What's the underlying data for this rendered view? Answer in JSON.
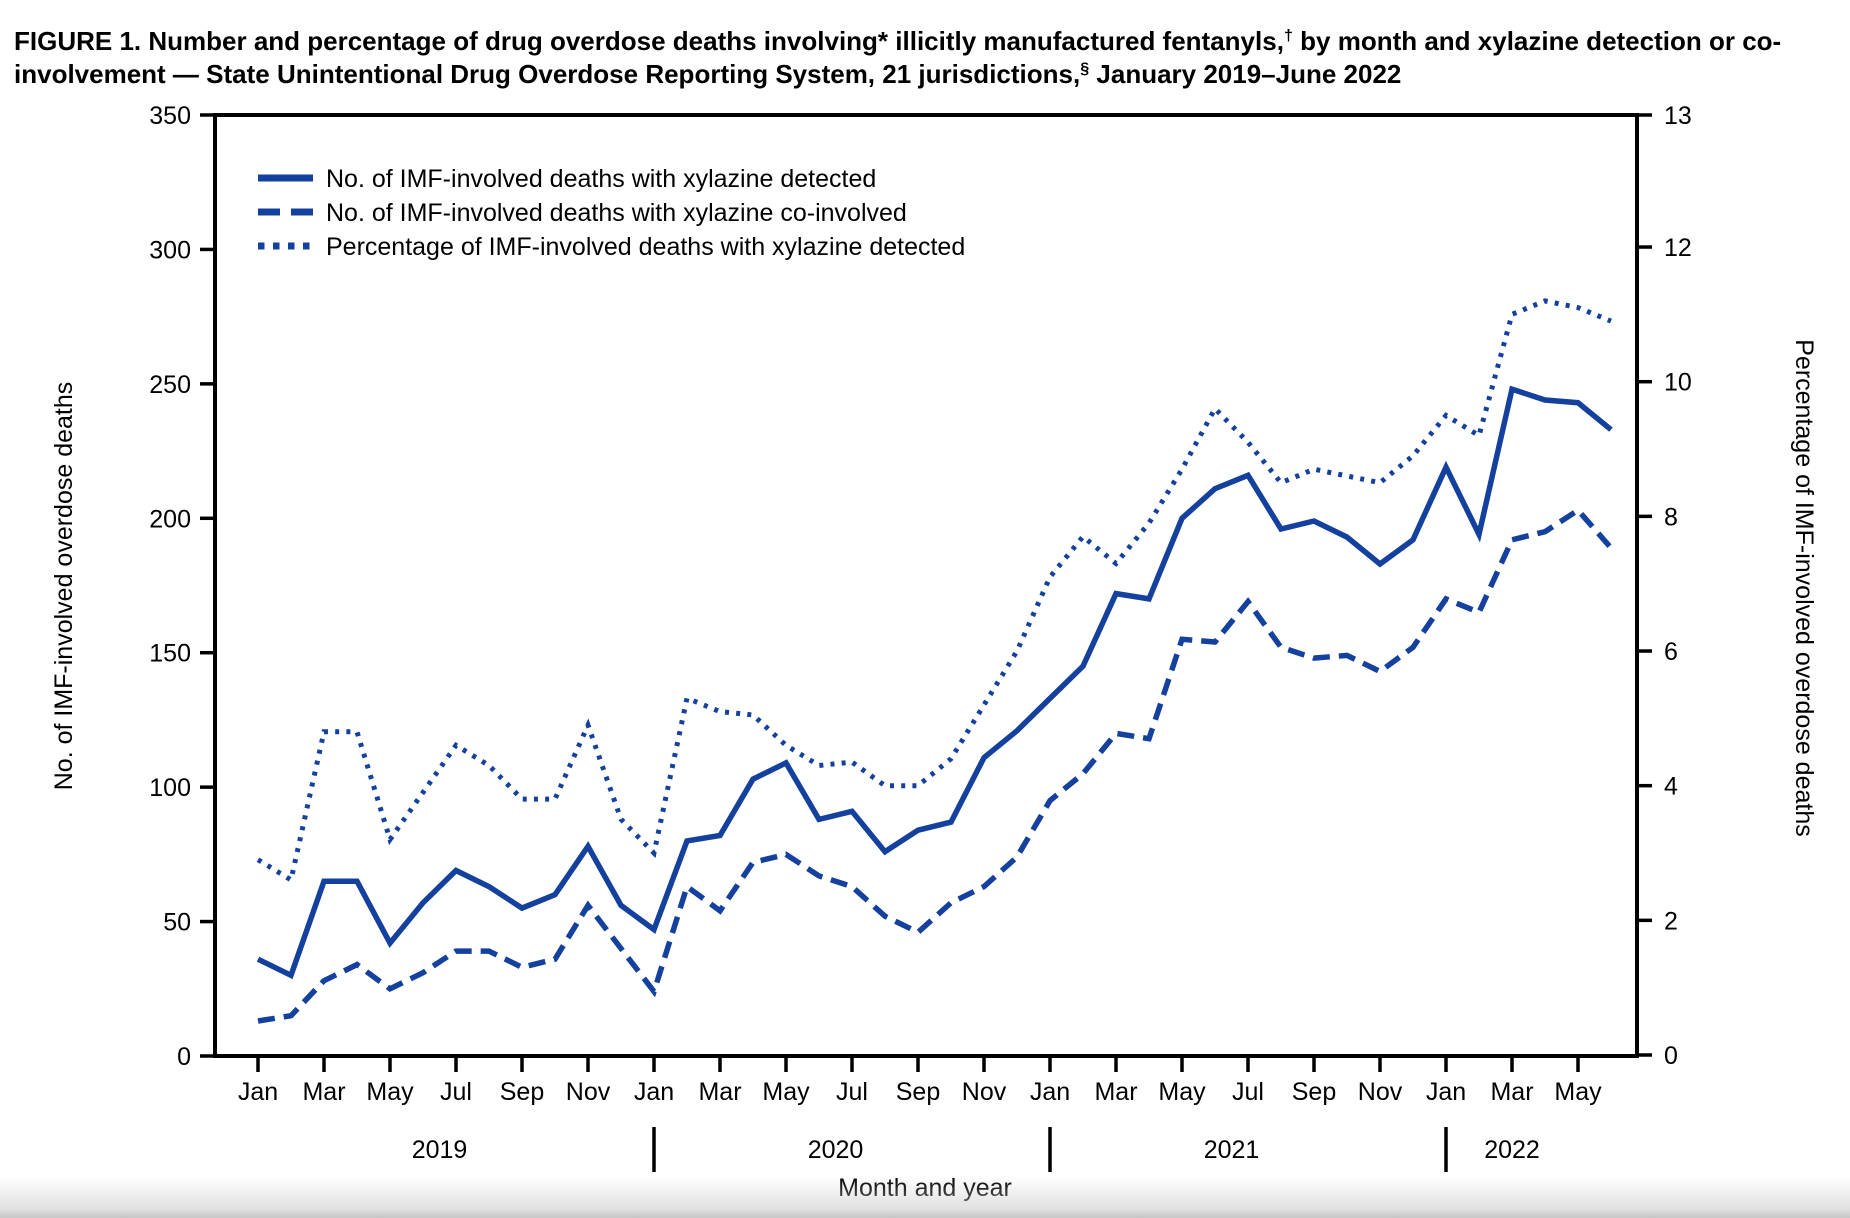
{
  "figure_title": {
    "plain": "FIGURE 1. Number and percentage of drug overdose deaths involving* illicitly manufactured fentanyls,† by month and xylazine detection or co-involvement — State Unintentional Drug Overdose Reporting System, 21 jurisdictions,§ January 2019–June 2022",
    "segments": [
      {
        "text": "FIGURE 1. Number and percentage of drug overdose deaths involving* illicitly manufactured fentanyls,"
      },
      {
        "text": "†",
        "sup": true
      },
      {
        "text": " by month and xylazine detection or co-involvement — State Unintentional Drug Overdose Reporting System, 21 jurisdictions,"
      },
      {
        "text": "§",
        "sup": true
      },
      {
        "text": " January 2019–June 2022"
      }
    ]
  },
  "chart_data": {
    "type": "line",
    "title": "Number and percentage of drug overdose deaths involving illicitly manufactured fentanyls, by month and xylazine detection or co-involvement, January 2019–June 2022",
    "xlabel": "Month and year",
    "ylabel_left": "No. of IMF-involved overdose deaths",
    "ylabel_right": "Percentage of IMF-involved overdose deaths",
    "y_axis_left": {
      "min": 0,
      "max": 350,
      "ticks": [
        0,
        50,
        100,
        150,
        200,
        250,
        300,
        350
      ]
    },
    "y_axis_right": {
      "min": 0,
      "max": 13,
      "ticks": [
        0,
        2,
        4,
        6,
        8,
        10,
        12
      ],
      "top_tick": 13
    },
    "x_axis": {
      "month_tick_labels": [
        "Jan",
        "Mar",
        "May",
        "Jul",
        "Sep",
        "Nov",
        "Jan",
        "Mar",
        "May",
        "Jul",
        "Sep",
        "Nov",
        "Jan",
        "Mar",
        "May",
        "Jul",
        "Sep",
        "Nov",
        "Jan",
        "Mar",
        "May"
      ],
      "year_labels": [
        {
          "text": "2019",
          "anchor_month_index": 5.5
        },
        {
          "text": "2020",
          "anchor_month_index": 17.5
        },
        {
          "text": "2021",
          "anchor_month_index": 29.5
        },
        {
          "text": "2022",
          "anchor_month_index": 38
        }
      ],
      "year_separator_month_indexes": [
        12,
        24,
        36
      ]
    },
    "months": [
      "Jan 2019",
      "Feb 2019",
      "Mar 2019",
      "Apr 2019",
      "May 2019",
      "Jun 2019",
      "Jul 2019",
      "Aug 2019",
      "Sep 2019",
      "Oct 2019",
      "Nov 2019",
      "Dec 2019",
      "Jan 2020",
      "Feb 2020",
      "Mar 2020",
      "Apr 2020",
      "May 2020",
      "Jun 2020",
      "Jul 2020",
      "Aug 2020",
      "Sep 2020",
      "Oct 2020",
      "Nov 2020",
      "Dec 2020",
      "Jan 2021",
      "Feb 2021",
      "Mar 2021",
      "Apr 2021",
      "May 2021",
      "Jun 2021",
      "Jul 2021",
      "Aug 2021",
      "Sep 2021",
      "Oct 2021",
      "Nov 2021",
      "Dec 2021",
      "Jan 2022",
      "Feb 2022",
      "Mar 2022",
      "Apr 2022",
      "May 2022",
      "Jun 2022"
    ],
    "series": [
      {
        "name": "No. of IMF-involved deaths with xylazine detected",
        "style": "solid",
        "axis": "left",
        "values": [
          36,
          30,
          65,
          65,
          42,
          57,
          69,
          63,
          55,
          60,
          78,
          56,
          47,
          80,
          82,
          103,
          109,
          88,
          91,
          76,
          84,
          87,
          111,
          121,
          133,
          145,
          172,
          170,
          200,
          211,
          216,
          196,
          199,
          193,
          183,
          192,
          219,
          194,
          248,
          244,
          243,
          233
        ]
      },
      {
        "name": "No. of IMF-involved deaths with xylazine co-involved",
        "style": "dashed",
        "axis": "left",
        "values": [
          13,
          15,
          28,
          34,
          25,
          31,
          39,
          39,
          33,
          36,
          56,
          40,
          24,
          63,
          54,
          72,
          75,
          67,
          63,
          52,
          46,
          57,
          63,
          74,
          95,
          105,
          120,
          118,
          155,
          154,
          169,
          152,
          148,
          149,
          143,
          152,
          170,
          165,
          192,
          195,
          203,
          189
        ]
      },
      {
        "name": "Percentage of IMF-involved deaths with xylazine detected",
        "style": "dotted",
        "axis": "right",
        "values": [
          2.9,
          2.6,
          4.8,
          4.8,
          3.2,
          3.9,
          4.6,
          4.3,
          3.8,
          3.8,
          4.9,
          3.5,
          3.0,
          5.3,
          5.1,
          5.05,
          4.6,
          4.3,
          4.35,
          4.0,
          4.0,
          4.4,
          5.2,
          6.0,
          7.1,
          7.7,
          7.3,
          7.9,
          8.7,
          9.6,
          9.1,
          8.5,
          8.7,
          8.6,
          8.5,
          8.9,
          9.5,
          9.2,
          11.0,
          11.2,
          11.1,
          10.9
        ]
      }
    ],
    "line_color": "#14419e",
    "axis_color": "#000000",
    "grid": false,
    "legend_position": "top-left-inside"
  },
  "legend": {
    "items": [
      {
        "label": "No. of IMF-involved deaths with xylazine detected",
        "style": "solid"
      },
      {
        "label": "No. of IMF-involved deaths with xylazine co-involved",
        "style": "dashed"
      },
      {
        "label": "Percentage of IMF-involved deaths with xylazine detected",
        "style": "dotted"
      }
    ]
  }
}
